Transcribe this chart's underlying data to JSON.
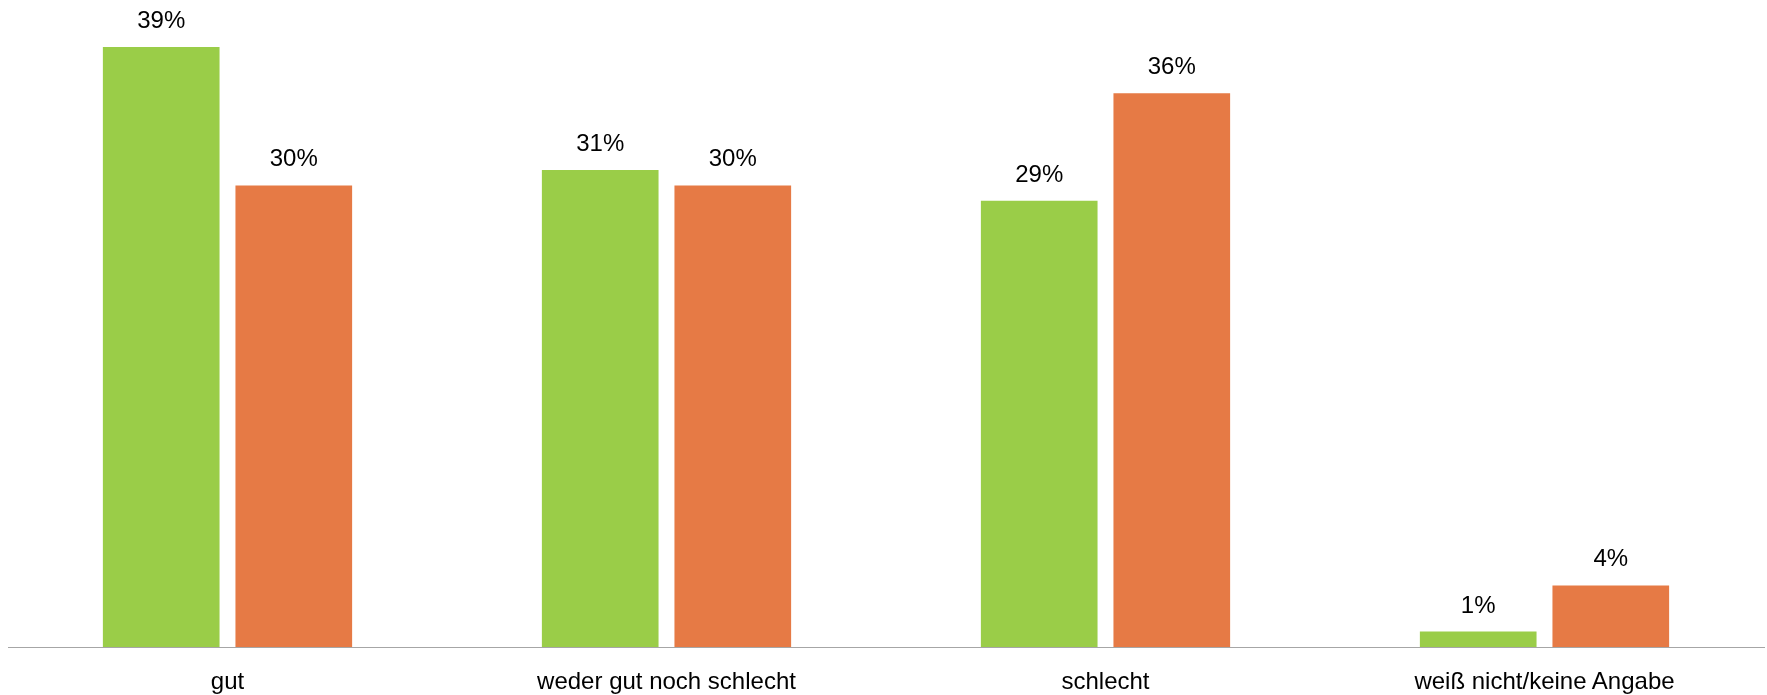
{
  "chart_data": {
    "type": "bar",
    "categories": [
      "gut",
      "weder gut noch schlecht",
      "schlecht",
      "weiß nicht/keine Angabe"
    ],
    "series": [
      {
        "color": "#9acd48",
        "values": [
          39,
          31,
          29,
          1
        ],
        "value_labels": [
          "39%",
          "31%",
          "29%",
          "1%"
        ]
      },
      {
        "color": "#e67a45",
        "values": [
          30,
          30,
          36,
          4
        ],
        "value_labels": [
          "30%",
          "30%",
          "36%",
          "4%"
        ]
      }
    ]
  }
}
